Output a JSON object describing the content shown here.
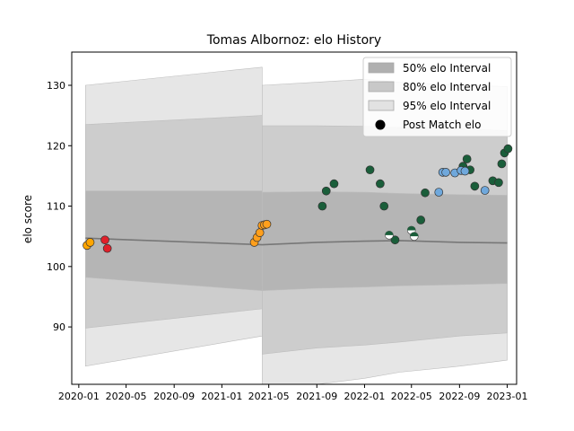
{
  "chart_data": {
    "type": "scatter",
    "title": "Tomas Albornoz: elo History",
    "xlabel": "",
    "ylabel": "elo score",
    "xlim": [
      "2019-12-14",
      "2023-01-25"
    ],
    "ylim": [
      80.5,
      135.5
    ],
    "x_ticks": [
      "2020-01-01",
      "2020-05-01",
      "2020-09-01",
      "2021-01-01",
      "2021-05-01",
      "2021-09-01",
      "2022-01-01",
      "2022-05-01",
      "2022-09-01",
      "2023-01-01"
    ],
    "x_tick_labels": [
      "2020-01",
      "2020-05",
      "2020-09",
      "2021-01",
      "2021-05",
      "2021-09",
      "2022-01",
      "2022-05",
      "2022-09",
      "2023-01"
    ],
    "y_ticks": [
      90,
      100,
      110,
      120,
      130
    ],
    "grid": false,
    "legend": {
      "placement": "top-right",
      "entries": [
        {
          "label": "50% elo Interval",
          "color": "#b0b0b0"
        },
        {
          "label": "80% elo Interval",
          "color": "#c8c8c8"
        },
        {
          "label": "95% elo Interval",
          "color": "#e2e2e2"
        },
        {
          "label": "Post Match elo",
          "color": "#000000"
        }
      ]
    },
    "colors": {
      "interval_50": "#b0b0b0",
      "interval_80": "#c8c8c8",
      "interval_95": "#e2e2e2",
      "mean_line": "#777777",
      "axis": "#000000"
    },
    "bands": [
      {
        "name": "95% elo Interval",
        "segment": "early",
        "x": [
          "2020-01-18",
          "2021-04-14"
        ],
        "upper": [
          130.0,
          133.0
        ],
        "lower": [
          83.5,
          88.5
        ]
      },
      {
        "name": "80% elo Interval",
        "segment": "early",
        "x": [
          "2020-01-18",
          "2021-04-14"
        ],
        "upper": [
          123.5,
          125.0
        ],
        "lower": [
          89.8,
          93.0
        ]
      },
      {
        "name": "50% elo Interval",
        "segment": "early",
        "x": [
          "2020-01-18",
          "2021-04-14"
        ],
        "upper": [
          112.5,
          112.5
        ],
        "lower": [
          98.2,
          96.0
        ]
      },
      {
        "name": "95% elo Interval",
        "segment": "late",
        "x": [
          "2021-04-14",
          "2021-09-01",
          "2022-01-01",
          "2022-04-01",
          "2022-09-01",
          "2023-01-01"
        ],
        "upper": [
          130.0,
          130.5,
          131.0,
          130.5,
          130.0,
          129.8
        ],
        "lower": [
          79.0,
          80.5,
          81.5,
          82.5,
          83.5,
          84.5
        ]
      },
      {
        "name": "80% elo Interval",
        "segment": "late",
        "x": [
          "2021-04-14",
          "2021-09-01",
          "2022-01-01",
          "2022-04-01",
          "2022-09-01",
          "2023-01-01"
        ],
        "upper": [
          123.3,
          123.3,
          123.2,
          123.0,
          122.8,
          122.5
        ],
        "lower": [
          85.5,
          86.5,
          87.0,
          87.5,
          88.5,
          89.0
        ]
      },
      {
        "name": "50% elo Interval",
        "segment": "late",
        "x": [
          "2021-04-14",
          "2021-09-01",
          "2022-01-01",
          "2022-04-01",
          "2022-09-01",
          "2023-01-01"
        ],
        "upper": [
          112.3,
          112.4,
          112.3,
          112.1,
          111.9,
          111.8
        ],
        "lower": [
          96.0,
          96.4,
          96.6,
          96.8,
          97.0,
          97.2
        ]
      }
    ],
    "mean_line": {
      "x": [
        "2020-01-18",
        "2021-04-14",
        "2021-09-01",
        "2022-01-01",
        "2022-04-01",
        "2022-09-01",
        "2023-01-01"
      ],
      "y": [
        104.7,
        103.6,
        104.0,
        104.2,
        104.3,
        104.0,
        103.9
      ]
    },
    "series": [
      {
        "name": "",
        "color": "#ffa500",
        "x": [
          "2020-01-22",
          "2020-01-30"
        ],
        "y": [
          103.5,
          104.0
        ]
      },
      {
        "name": "",
        "color": "#e0202a",
        "x": [
          "2020-03-08",
          "2020-03-14"
        ],
        "y": [
          104.4,
          103.0
        ]
      },
      {
        "name": "",
        "color": "#ff9f1c",
        "x": [
          "2021-03-25",
          "2021-04-01",
          "2021-04-08",
          "2021-04-14",
          "2021-04-20",
          "2021-04-26"
        ],
        "y": [
          104.0,
          104.8,
          105.6,
          106.8,
          106.9,
          107.0
        ]
      },
      {
        "name": "",
        "color": "#1a5e3a",
        "x": [
          "2021-09-15",
          "2021-09-25",
          "2021-10-15",
          "2022-01-15",
          "2022-02-10",
          "2022-02-20",
          "2022-03-20",
          "2022-05-25",
          "2022-06-05",
          "2022-09-10",
          "2022-09-20",
          "2022-09-28",
          "2022-10-10",
          "2022-11-25",
          "2022-12-10",
          "2022-12-18",
          "2022-12-25",
          "2023-01-03"
        ],
        "y": [
          110.0,
          112.5,
          113.7,
          116.0,
          113.7,
          110.0,
          104.4,
          107.7,
          112.2,
          116.6,
          117.8,
          116.0,
          113.3,
          114.2,
          113.9,
          117.0,
          118.8,
          119.5
        ]
      },
      {
        "name": "",
        "color": "#1a5e3a",
        "secondary": "#ffffff",
        "x": [
          "2022-03-05",
          "2022-05-01",
          "2022-05-08"
        ],
        "y": [
          105.2,
          106.0,
          105.0
        ]
      },
      {
        "name": "",
        "color": "#6fa8dc",
        "x": [
          "2022-07-10",
          "2022-07-20",
          "2022-07-28",
          "2022-08-20",
          "2022-09-05",
          "2022-09-15",
          "2022-11-05"
        ],
        "y": [
          112.3,
          115.6,
          115.6,
          115.5,
          115.9,
          115.8,
          112.6
        ]
      }
    ]
  }
}
